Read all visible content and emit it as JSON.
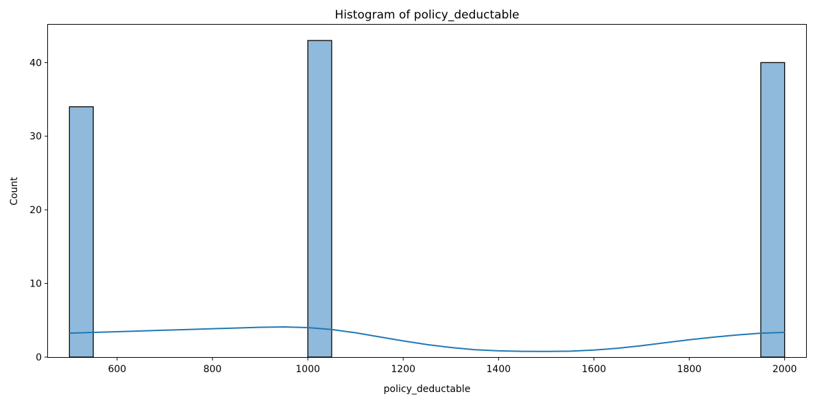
{
  "chart_data": {
    "type": "bar",
    "title": "Histogram of policy_deductable",
    "xlabel": "policy_deductable",
    "ylabel": "Count",
    "xlim": [
      455,
      2045
    ],
    "ylim": [
      0,
      45.15
    ],
    "x_ticks": [
      600,
      800,
      1000,
      1200,
      1400,
      1600,
      1800,
      2000
    ],
    "y_ticks": [
      0,
      10,
      20,
      30,
      40
    ],
    "grid": false,
    "bin_width": 50,
    "bins": [
      {
        "start": 500,
        "end": 550,
        "count": 34
      },
      {
        "start": 550,
        "end": 600,
        "count": 0
      },
      {
        "start": 600,
        "end": 650,
        "count": 0
      },
      {
        "start": 650,
        "end": 700,
        "count": 0
      },
      {
        "start": 700,
        "end": 750,
        "count": 0
      },
      {
        "start": 750,
        "end": 800,
        "count": 0
      },
      {
        "start": 800,
        "end": 850,
        "count": 0
      },
      {
        "start": 850,
        "end": 900,
        "count": 0
      },
      {
        "start": 900,
        "end": 950,
        "count": 0
      },
      {
        "start": 950,
        "end": 1000,
        "count": 0
      },
      {
        "start": 1000,
        "end": 1050,
        "count": 43
      },
      {
        "start": 1050,
        "end": 1100,
        "count": 0
      },
      {
        "start": 1100,
        "end": 1150,
        "count": 0
      },
      {
        "start": 1150,
        "end": 1200,
        "count": 0
      },
      {
        "start": 1200,
        "end": 1250,
        "count": 0
      },
      {
        "start": 1250,
        "end": 1300,
        "count": 0
      },
      {
        "start": 1300,
        "end": 1350,
        "count": 0
      },
      {
        "start": 1350,
        "end": 1400,
        "count": 0
      },
      {
        "start": 1400,
        "end": 1450,
        "count": 0
      },
      {
        "start": 1450,
        "end": 1500,
        "count": 0
      },
      {
        "start": 1500,
        "end": 1550,
        "count": 0
      },
      {
        "start": 1550,
        "end": 1600,
        "count": 0
      },
      {
        "start": 1600,
        "end": 1650,
        "count": 0
      },
      {
        "start": 1650,
        "end": 1700,
        "count": 0
      },
      {
        "start": 1700,
        "end": 1750,
        "count": 0
      },
      {
        "start": 1750,
        "end": 1800,
        "count": 0
      },
      {
        "start": 1800,
        "end": 1850,
        "count": 0
      },
      {
        "start": 1850,
        "end": 1900,
        "count": 0
      },
      {
        "start": 1900,
        "end": 1950,
        "count": 0
      },
      {
        "start": 1950,
        "end": 2000,
        "count": 40
      }
    ],
    "kde": {
      "x": [
        500,
        550,
        600,
        650,
        700,
        750,
        800,
        850,
        900,
        950,
        1000,
        1050,
        1100,
        1150,
        1200,
        1250,
        1300,
        1350,
        1400,
        1450,
        1500,
        1550,
        1600,
        1650,
        1700,
        1750,
        1800,
        1850,
        1900,
        1950,
        2000
      ],
      "y": [
        3.25,
        3.35,
        3.45,
        3.55,
        3.65,
        3.75,
        3.85,
        3.95,
        4.05,
        4.1,
        4.0,
        3.75,
        3.3,
        2.75,
        2.2,
        1.7,
        1.3,
        1.0,
        0.85,
        0.78,
        0.77,
        0.8,
        0.95,
        1.2,
        1.55,
        1.95,
        2.35,
        2.7,
        3.0,
        3.25,
        3.35
      ]
    },
    "colors": {
      "bar_fill": "#8fbadb",
      "bar_edge": "#000000",
      "kde_line": "#1f77b4"
    }
  }
}
